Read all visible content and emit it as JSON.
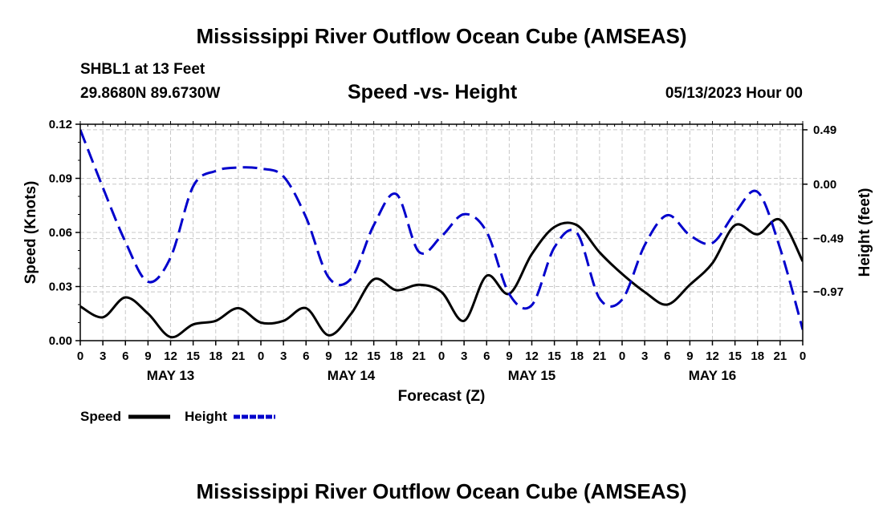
{
  "page": {
    "title_top": "Mississippi River Outflow Ocean Cube (AMSEAS)",
    "title_bottom": "Mississippi River Outflow Ocean Cube (AMSEAS)",
    "station": "SHBL1 at 13 Feet",
    "coords": "29.8680N  89.6730W",
    "subtitle": "Speed -vs- Height",
    "datestamp": "05/13/2023 Hour 00"
  },
  "chart_data": {
    "type": "line",
    "title": "Speed -vs- Height",
    "xlabel": "Forecast (Z)",
    "ylabel": "Speed (Knots)",
    "y2label": "Height (feet)",
    "xlim": [
      0,
      96
    ],
    "ylim": [
      0,
      0.12
    ],
    "y2lim": [
      -1.41,
      0.54
    ],
    "yticks": [
      "0.00",
      "0.03",
      "0.06",
      "0.09",
      "0.12"
    ],
    "y2ticks": [
      {
        "value": 0.49,
        "label": "0.49"
      },
      {
        "value": 0.0,
        "label": "0.00"
      },
      {
        "value": -0.49,
        "label": "−0.49"
      },
      {
        "value": -0.97,
        "label": "−0.97"
      }
    ],
    "xtick_labels": [
      "0",
      "3",
      "6",
      "9",
      "12",
      "15",
      "18",
      "21",
      "0",
      "3",
      "6",
      "9",
      "12",
      "15",
      "18",
      "21",
      "0",
      "3",
      "6",
      "9",
      "12",
      "15",
      "18",
      "21",
      "0",
      "3",
      "6",
      "9",
      "12",
      "15",
      "18",
      "21",
      "0"
    ],
    "date_labels": [
      {
        "hour": 12,
        "label": "MAY 13"
      },
      {
        "hour": 36,
        "label": "MAY 14"
      },
      {
        "hour": 60,
        "label": "MAY 15"
      },
      {
        "hour": 84,
        "label": "MAY 16"
      }
    ],
    "grid": true,
    "legend": [
      {
        "name": "Speed",
        "style": "solid",
        "color": "#000000"
      },
      {
        "name": "Height",
        "style": "dashed",
        "color": "#0000cc"
      }
    ],
    "series": [
      {
        "name": "Speed",
        "axis": "left",
        "color": "#000000",
        "style": "solid",
        "x": [
          0,
          3,
          6,
          9,
          12,
          15,
          18,
          21,
          24,
          27,
          30,
          33,
          36,
          39,
          42,
          45,
          48,
          51,
          54,
          57,
          60,
          63,
          66,
          69,
          72,
          75,
          78,
          81,
          84,
          87,
          90,
          93,
          96
        ],
        "values": [
          0.019,
          0.013,
          0.024,
          0.015,
          0.002,
          0.009,
          0.011,
          0.018,
          0.01,
          0.011,
          0.018,
          0.003,
          0.015,
          0.034,
          0.028,
          0.031,
          0.027,
          0.011,
          0.036,
          0.026,
          0.048,
          0.063,
          0.064,
          0.049,
          0.037,
          0.027,
          0.02,
          0.031,
          0.043,
          0.064,
          0.059,
          0.067,
          0.044
        ]
      },
      {
        "name": "Height",
        "axis": "right",
        "color": "#0000cc",
        "style": "dashed",
        "x": [
          0,
          3,
          6,
          9,
          12,
          15,
          18,
          21,
          24,
          27,
          30,
          33,
          36,
          39,
          42,
          45,
          48,
          51,
          54,
          57,
          60,
          63,
          66,
          69,
          72,
          75,
          78,
          81,
          84,
          87,
          90,
          93,
          96
        ],
        "values": [
          0.49,
          -0.03,
          -0.52,
          -0.88,
          -0.66,
          -0.02,
          0.12,
          0.15,
          0.14,
          0.07,
          -0.3,
          -0.84,
          -0.85,
          -0.37,
          -0.09,
          -0.61,
          -0.47,
          -0.27,
          -0.43,
          -0.99,
          -1.09,
          -0.57,
          -0.44,
          -1.03,
          -1.04,
          -0.55,
          -0.28,
          -0.46,
          -0.53,
          -0.26,
          -0.07,
          -0.58,
          -1.31
        ]
      }
    ]
  }
}
